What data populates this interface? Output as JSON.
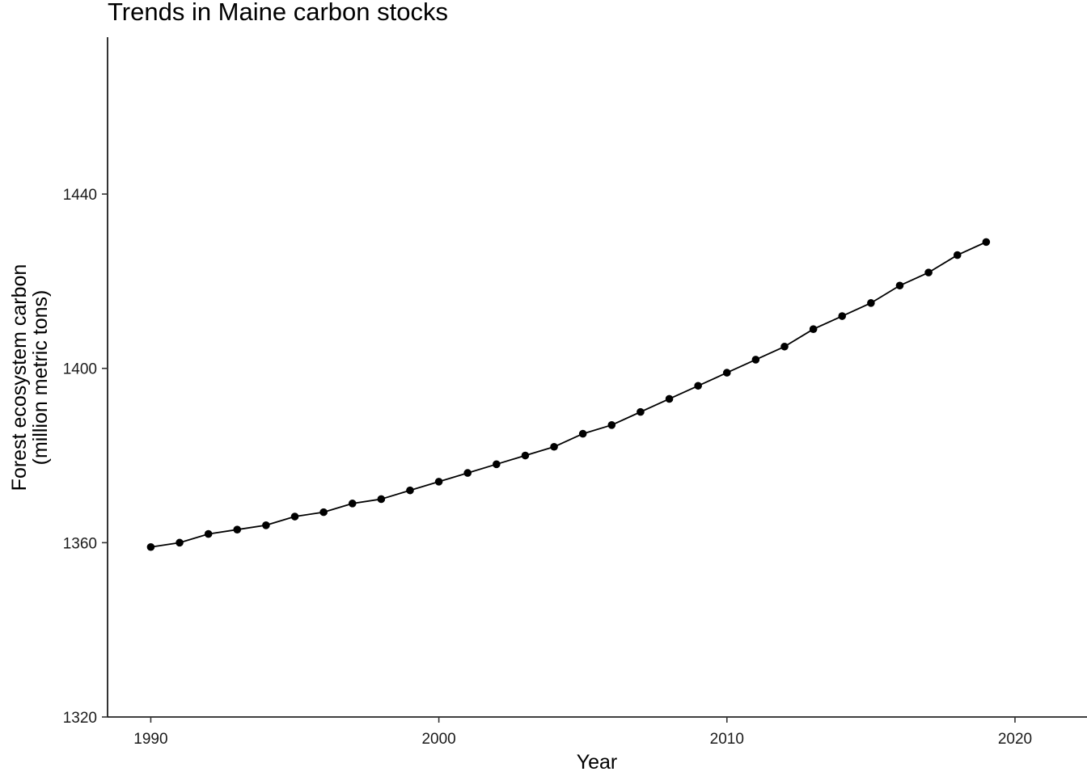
{
  "chart_data": {
    "type": "line",
    "title": "Trends in Maine carbon stocks",
    "xlabel": "Year",
    "ylabel": [
      "Forest ecosystem carbon",
      "(million metric tons)"
    ],
    "xlim": [
      1988.5,
      2022.5
    ],
    "ylim": [
      1320,
      1476
    ],
    "x_ticks": [
      1990,
      2000,
      2010,
      2020
    ],
    "y_ticks": [
      1320,
      1360,
      1400,
      1440
    ],
    "grid": false,
    "legend": "none",
    "series": [
      {
        "x": [
          1990,
          1991,
          1992,
          1993,
          1994,
          1995,
          1996,
          1997,
          1998,
          1999,
          2000,
          2001,
          2002,
          2003,
          2004,
          2005,
          2006,
          2007,
          2008,
          2009,
          2010,
          2011,
          2012,
          2013,
          2014,
          2015,
          2016,
          2017,
          2018,
          2019
        ],
        "y": [
          1359,
          1360,
          1362,
          1363,
          1364,
          1366,
          1367,
          1369,
          1370,
          1372,
          1374,
          1376,
          1378,
          1380,
          1382,
          1385,
          1387,
          1390,
          1393,
          1396,
          1399,
          1402,
          1405,
          1409,
          1412,
          1415,
          1419,
          1422,
          1426,
          1429
        ],
        "color": "#000000"
      }
    ]
  }
}
